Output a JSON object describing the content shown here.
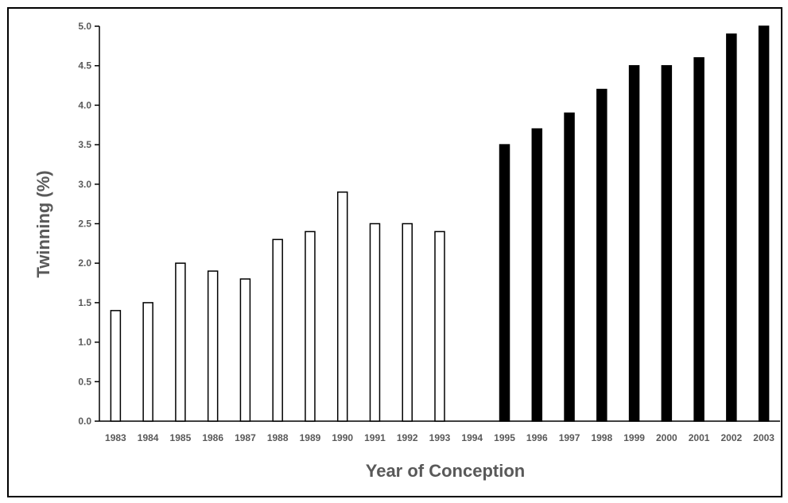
{
  "chart_data": {
    "type": "bar",
    "title": "",
    "xlabel": "Year of Conception",
    "ylabel": "Twinning (%)",
    "ylim": [
      0,
      5.0
    ],
    "yticks": [
      "0.0",
      "0.5",
      "1.0",
      "1.5",
      "2.0",
      "2.5",
      "3.0",
      "3.5",
      "4.0",
      "4.5",
      "5.0"
    ],
    "categories": [
      "1983",
      "1984",
      "1985",
      "1986",
      "1987",
      "1988",
      "1989",
      "1990",
      "1991",
      "1992",
      "1993",
      "1994",
      "1995",
      "1996",
      "1997",
      "1998",
      "1999",
      "2000",
      "2001",
      "2002",
      "2003"
    ],
    "series": [
      {
        "fill": "#ffffff",
        "stroke": "#000000",
        "values": [
          1.4,
          1.5,
          2.0,
          1.9,
          1.8,
          2.3,
          2.4,
          2.9,
          2.5,
          2.5,
          2.4,
          null,
          null,
          null,
          null,
          null,
          null,
          null,
          null,
          null,
          null
        ]
      },
      {
        "fill": "#000000",
        "stroke": "#000000",
        "values": [
          null,
          null,
          null,
          null,
          null,
          null,
          null,
          null,
          null,
          null,
          null,
          null,
          3.5,
          3.7,
          3.9,
          4.2,
          4.5,
          4.5,
          4.6,
          4.9,
          5.0
        ]
      }
    ],
    "grid": false,
    "legend": "none"
  }
}
